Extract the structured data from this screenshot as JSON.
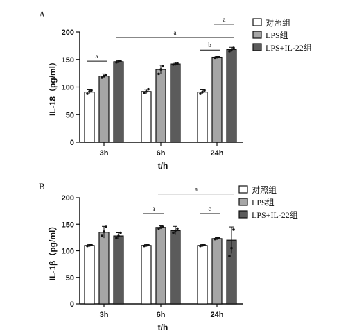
{
  "chart_data": [
    {
      "type": "bar",
      "panel_label": "A",
      "categories": [
        "3h",
        "6h",
        "24h"
      ],
      "xlabel": "t/h",
      "ylabel": "IL-18（pg/ml）",
      "ylim": [
        0,
        200
      ],
      "yticks": [
        0,
        50,
        100,
        150,
        200
      ],
      "series": [
        {
          "name": "对照组",
          "values": [
            91,
            92,
            91
          ],
          "errors": [
            4,
            4,
            4
          ],
          "points": [
            [
              88,
              92,
              94
            ],
            [
              89,
              92,
              96
            ],
            [
              88,
              91,
              94
            ]
          ],
          "color": "#ffffff"
        },
        {
          "name": "LPS组",
          "values": [
            120,
            132,
            154
          ],
          "errors": [
            4,
            8,
            2
          ],
          "points": [
            [
              117,
              120,
              122
            ],
            [
              124,
              132,
              138
            ],
            [
              153,
              154,
              155
            ]
          ],
          "color": "#a6a6a6"
        },
        {
          "name": "LPS+IL-22组",
          "values": [
            146,
            142,
            168
          ],
          "errors": [
            2,
            3,
            4
          ],
          "points": [
            [
              145,
              146,
              147
            ],
            [
              141,
              142,
              143
            ],
            [
              165,
              168,
              171
            ]
          ],
          "color": "#5b5b5b"
        }
      ],
      "annotations": [
        {
          "label": "a",
          "from": [
            0,
            0
          ],
          "to": [
            0,
            1
          ],
          "y": 147
        },
        {
          "label": "a",
          "from": [
            0,
            2
          ],
          "to": [
            2,
            2
          ],
          "y": 190
        },
        {
          "label": "b",
          "from": [
            2,
            0
          ],
          "to": [
            2,
            1
          ],
          "y": 167
        },
        {
          "label": "a",
          "from": [
            2,
            1
          ],
          "to": [
            2,
            2
          ],
          "y": 214
        }
      ],
      "legend": "right",
      "grid": false
    },
    {
      "type": "bar",
      "panel_label": "B",
      "categories": [
        "3h",
        "6h",
        "24h"
      ],
      "xlabel": "t/h",
      "ylabel": "IL-1β（pg/ml）",
      "ylim": [
        0,
        200
      ],
      "yticks": [
        0,
        50,
        100,
        150,
        200
      ],
      "series": [
        {
          "name": "对照组",
          "values": [
            110,
            110,
            110
          ],
          "errors": [
            2,
            2,
            2
          ],
          "points": [
            [
              109,
              110,
              111
            ],
            [
              109,
              110,
              111
            ],
            [
              109,
              110,
              111
            ]
          ],
          "color": "#ffffff"
        },
        {
          "name": "LPS组",
          "values": [
            135,
            144,
            123
          ],
          "errors": [
            11,
            3,
            2
          ],
          "points": [
            [
              128,
              136,
              145
            ],
            [
              142,
              144,
              145
            ],
            [
              122,
              123,
              124
            ]
          ],
          "color": "#a6a6a6"
        },
        {
          "name": "LPS+IL-22组",
          "values": [
            128,
            138,
            120
          ],
          "errors": [
            6,
            8,
            25
          ],
          "points": [
            [
              124,
              128,
              134
            ],
            [
              134,
              138,
              142
            ],
            [
              90,
              105,
              140
            ]
          ],
          "color": "#5b5b5b"
        }
      ],
      "annotations": [
        {
          "label": "a",
          "from": [
            1,
            0
          ],
          "to": [
            1,
            1
          ],
          "y": 170
        },
        {
          "label": "a",
          "from": [
            1,
            1
          ],
          "to": [
            2,
            2
          ],
          "y": 207
        },
        {
          "label": "c",
          "from": [
            2,
            0
          ],
          "to": [
            2,
            1
          ],
          "y": 170
        }
      ],
      "legend": "right",
      "grid": false
    }
  ]
}
